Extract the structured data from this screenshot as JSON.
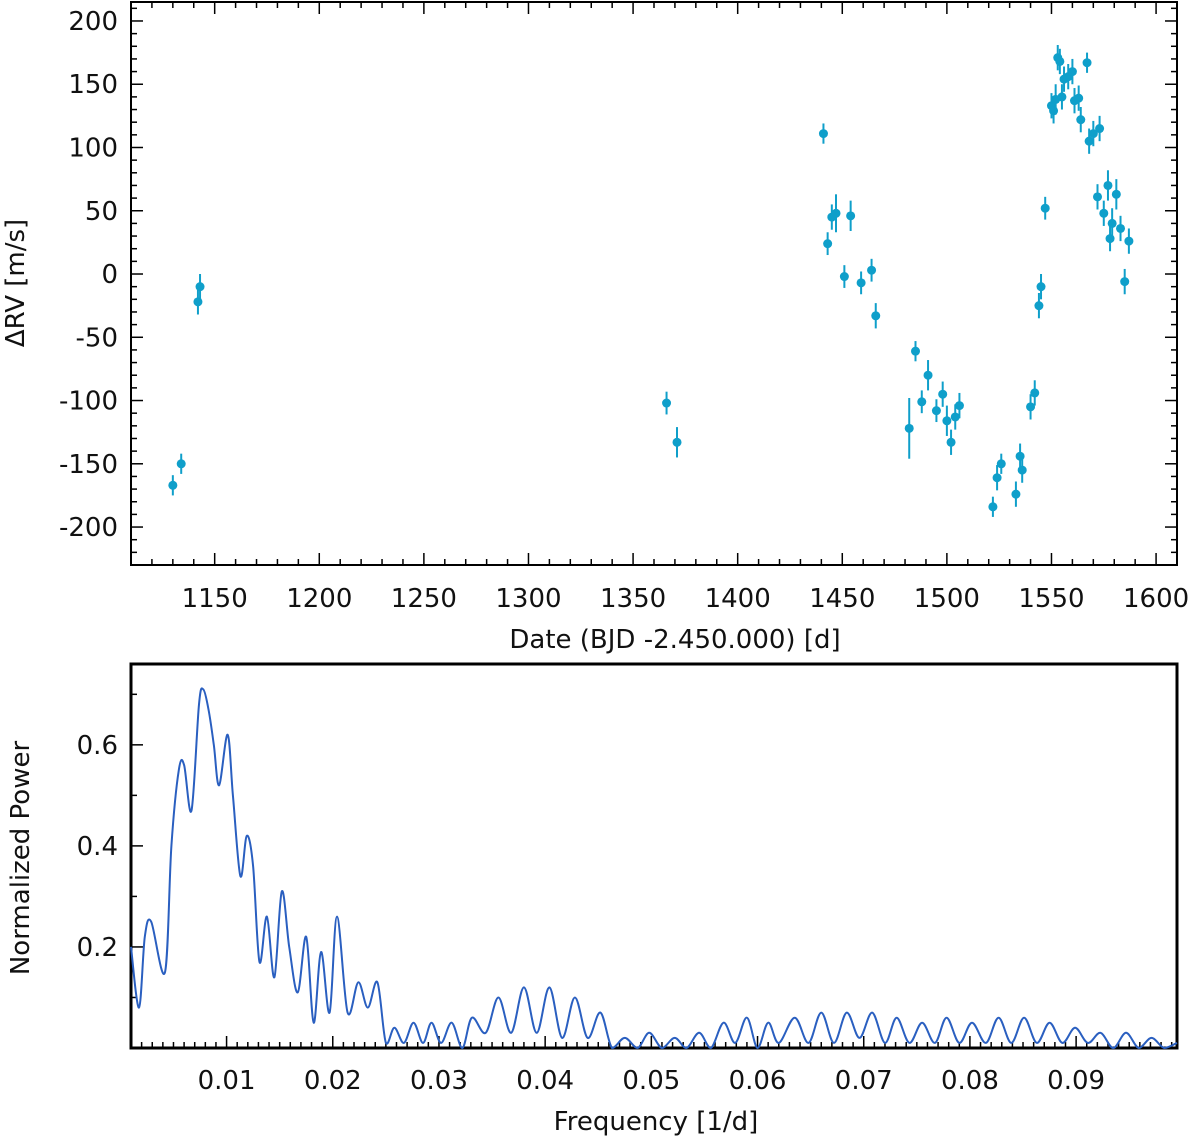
{
  "chart_data": [
    {
      "type": "scatter",
      "title": "",
      "xlabel": "Date (BJD -2.450.000) [d]",
      "ylabel": "ΔRV [m/s]",
      "xlim": [
        1110,
        1610
      ],
      "ylim": [
        -230,
        215
      ],
      "xticks": [
        1150,
        1200,
        1250,
        1300,
        1350,
        1400,
        1450,
        1500,
        1550,
        1600
      ],
      "xtick_labels": [
        "1150",
        "1200",
        "1250",
        "1300",
        "1350",
        "1400",
        "1450",
        "1500",
        "1550",
        "1600"
      ],
      "yticks": [
        200,
        150,
        100,
        50,
        0,
        -50,
        -100,
        -150,
        -200
      ],
      "ytick_labels": [
        "200",
        "150",
        "100",
        "50",
        "0",
        "-50",
        "-100",
        "-150",
        "-200"
      ],
      "marker_color": "#0f9fca",
      "points": [
        {
          "x": 1130,
          "y": -167,
          "err": 8
        },
        {
          "x": 1134,
          "y": -150,
          "err": 8
        },
        {
          "x": 1142,
          "y": -22,
          "err": 10
        },
        {
          "x": 1143,
          "y": -10,
          "err": 10
        },
        {
          "x": 1366,
          "y": -102,
          "err": 9
        },
        {
          "x": 1371,
          "y": -133,
          "err": 12
        },
        {
          "x": 1441,
          "y": 111,
          "err": 8
        },
        {
          "x": 1443,
          "y": 24,
          "err": 9
        },
        {
          "x": 1445,
          "y": 45,
          "err": 10
        },
        {
          "x": 1447,
          "y": 48,
          "err": 15
        },
        {
          "x": 1451,
          "y": -2,
          "err": 9
        },
        {
          "x": 1454,
          "y": 46,
          "err": 12
        },
        {
          "x": 1459,
          "y": -7,
          "err": 9
        },
        {
          "x": 1464,
          "y": 3,
          "err": 9
        },
        {
          "x": 1466,
          "y": -33,
          "err": 10
        },
        {
          "x": 1482,
          "y": -122,
          "err": 24
        },
        {
          "x": 1485,
          "y": -61,
          "err": 8
        },
        {
          "x": 1488,
          "y": -101,
          "err": 9
        },
        {
          "x": 1491,
          "y": -80,
          "err": 12
        },
        {
          "x": 1495,
          "y": -108,
          "err": 9
        },
        {
          "x": 1498,
          "y": -95,
          "err": 10
        },
        {
          "x": 1500,
          "y": -116,
          "err": 12
        },
        {
          "x": 1502,
          "y": -133,
          "err": 10
        },
        {
          "x": 1504,
          "y": -113,
          "err": 10
        },
        {
          "x": 1506,
          "y": -104,
          "err": 10
        },
        {
          "x": 1522,
          "y": -184,
          "err": 8
        },
        {
          "x": 1524,
          "y": -161,
          "err": 10
        },
        {
          "x": 1526,
          "y": -150,
          "err": 8
        },
        {
          "x": 1533,
          "y": -174,
          "err": 10
        },
        {
          "x": 1535,
          "y": -144,
          "err": 10
        },
        {
          "x": 1536,
          "y": -155,
          "err": 10
        },
        {
          "x": 1540,
          "y": -105,
          "err": 10
        },
        {
          "x": 1542,
          "y": -94,
          "err": 10
        },
        {
          "x": 1544,
          "y": -25,
          "err": 10
        },
        {
          "x": 1545,
          "y": -10,
          "err": 10
        },
        {
          "x": 1547,
          "y": 52,
          "err": 9
        },
        {
          "x": 1550,
          "y": 133,
          "err": 10
        },
        {
          "x": 1551,
          "y": 129,
          "err": 10
        },
        {
          "x": 1552,
          "y": 138,
          "err": 12
        },
        {
          "x": 1553,
          "y": 171,
          "err": 10
        },
        {
          "x": 1554,
          "y": 168,
          "err": 10
        },
        {
          "x": 1555,
          "y": 140,
          "err": 10
        },
        {
          "x": 1556,
          "y": 154,
          "err": 10
        },
        {
          "x": 1558,
          "y": 156,
          "err": 10
        },
        {
          "x": 1560,
          "y": 160,
          "err": 10
        },
        {
          "x": 1561,
          "y": 137,
          "err": 10
        },
        {
          "x": 1563,
          "y": 139,
          "err": 10
        },
        {
          "x": 1564,
          "y": 122,
          "err": 10
        },
        {
          "x": 1567,
          "y": 167,
          "err": 8
        },
        {
          "x": 1568,
          "y": 105,
          "err": 10
        },
        {
          "x": 1570,
          "y": 111,
          "err": 10
        },
        {
          "x": 1572,
          "y": 61,
          "err": 10
        },
        {
          "x": 1573,
          "y": 115,
          "err": 10
        },
        {
          "x": 1575,
          "y": 48,
          "err": 10
        },
        {
          "x": 1577,
          "y": 70,
          "err": 12
        },
        {
          "x": 1578,
          "y": 28,
          "err": 10
        },
        {
          "x": 1579,
          "y": 40,
          "err": 12
        },
        {
          "x": 1581,
          "y": 63,
          "err": 12
        },
        {
          "x": 1583,
          "y": 36,
          "err": 10
        },
        {
          "x": 1585,
          "y": -6,
          "err": 10
        },
        {
          "x": 1587,
          "y": 26,
          "err": 10
        }
      ]
    },
    {
      "type": "line",
      "title": "",
      "xlabel": "Frequency [1/d]",
      "ylabel": "Normalized Power",
      "xlim": [
        0.001,
        0.0995
      ],
      "ylim": [
        0,
        0.76
      ],
      "xticks": [
        0.01,
        0.02,
        0.03,
        0.04,
        0.05,
        0.06,
        0.07,
        0.08,
        0.09
      ],
      "xtick_labels": [
        "0.01",
        "0.02",
        "0.03",
        "0.04",
        "0.05",
        "0.06",
        "0.07",
        "0.08",
        "0.09"
      ],
      "yticks": [
        0.2,
        0.4,
        0.6
      ],
      "ytick_labels": [
        "0.2",
        "0.4",
        "0.6"
      ],
      "line_color": "#2a5fc0",
      "x": [
        0.001,
        0.00175,
        0.0023,
        0.0029,
        0.0042,
        0.0048,
        0.0055,
        0.006,
        0.0067,
        0.0074,
        0.0078,
        0.0083,
        0.0088,
        0.0093,
        0.0101,
        0.0106,
        0.0113,
        0.0119,
        0.0125,
        0.0131,
        0.0138,
        0.0145,
        0.0152,
        0.0159,
        0.0167,
        0.0175,
        0.0182,
        0.0189,
        0.0197,
        0.0204,
        0.0214,
        0.0224,
        0.0233,
        0.0242,
        0.025,
        0.0258,
        0.0267,
        0.0276,
        0.0285,
        0.0293,
        0.0302,
        0.0312,
        0.0322,
        0.0331,
        0.0344,
        0.0356,
        0.0368,
        0.038,
        0.0392,
        0.0404,
        0.0416,
        0.0428,
        0.044,
        0.0452,
        0.0463,
        0.0475,
        0.0487,
        0.0498,
        0.051,
        0.0522,
        0.0533,
        0.0545,
        0.0556,
        0.0568,
        0.0579,
        0.059,
        0.06,
        0.061,
        0.062,
        0.0635,
        0.0648,
        0.066,
        0.0672,
        0.0684,
        0.0696,
        0.0708,
        0.072,
        0.0731,
        0.0743,
        0.0755,
        0.0767,
        0.0778,
        0.079,
        0.0802,
        0.0815,
        0.0827,
        0.0839,
        0.0851,
        0.0863,
        0.0875,
        0.0887,
        0.0899,
        0.0911,
        0.0923,
        0.0935,
        0.0947,
        0.0959,
        0.0971,
        0.0983,
        0.0995
      ],
      "y": [
        0.2,
        0.08,
        0.22,
        0.25,
        0.15,
        0.4,
        0.55,
        0.56,
        0.47,
        0.68,
        0.71,
        0.67,
        0.6,
        0.52,
        0.62,
        0.5,
        0.34,
        0.42,
        0.36,
        0.17,
        0.26,
        0.14,
        0.31,
        0.2,
        0.11,
        0.22,
        0.05,
        0.19,
        0.07,
        0.26,
        0.07,
        0.13,
        0.08,
        0.13,
        0.01,
        0.04,
        0.01,
        0.05,
        0.01,
        0.05,
        0.01,
        0.05,
        0.0,
        0.06,
        0.03,
        0.1,
        0.03,
        0.12,
        0.03,
        0.12,
        0.02,
        0.1,
        0.02,
        0.07,
        0.0,
        0.02,
        0.0,
        0.03,
        0.0,
        0.02,
        0.0,
        0.03,
        0.0,
        0.05,
        0.01,
        0.06,
        0.0,
        0.05,
        0.01,
        0.06,
        0.01,
        0.07,
        0.01,
        0.07,
        0.02,
        0.07,
        0.01,
        0.06,
        0.01,
        0.05,
        0.01,
        0.06,
        0.01,
        0.05,
        0.01,
        0.06,
        0.01,
        0.06,
        0.01,
        0.05,
        0.01,
        0.04,
        0.01,
        0.03,
        0.0,
        0.03,
        0.0,
        0.02,
        0.0,
        0.01
      ]
    }
  ]
}
